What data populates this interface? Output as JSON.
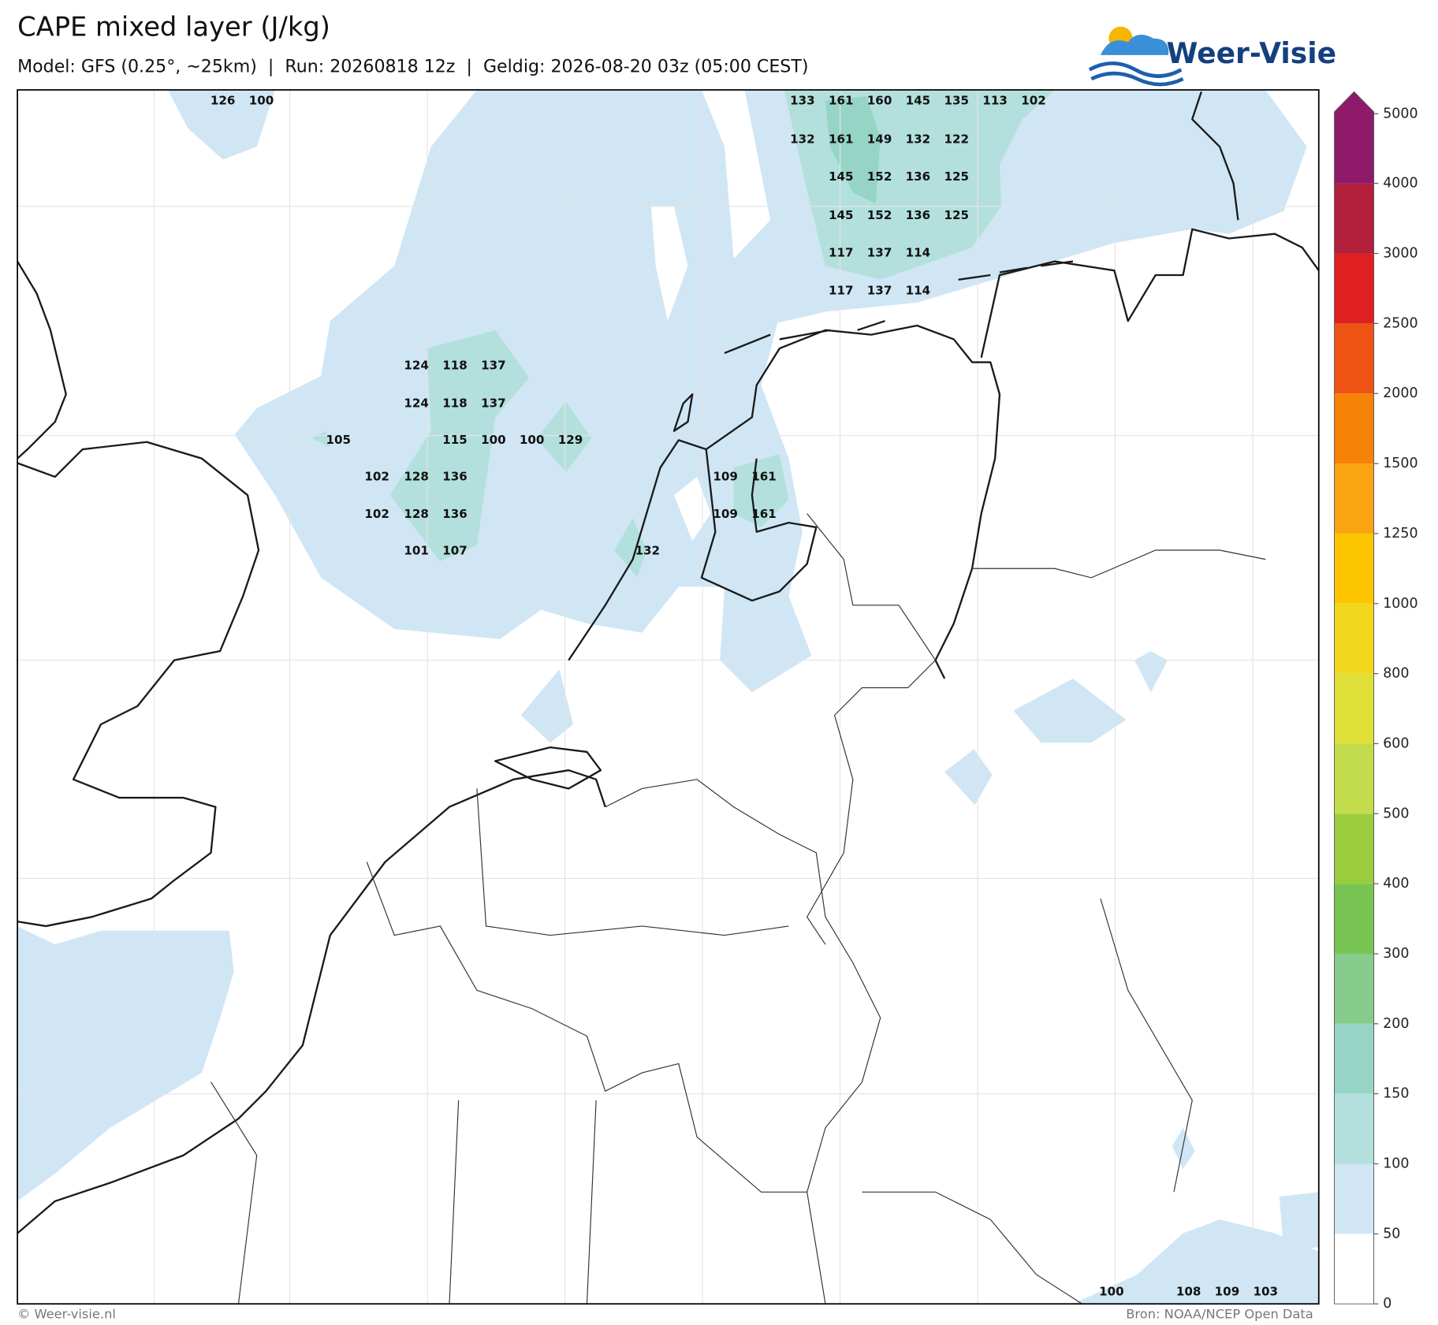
{
  "header": {
    "title": "CAPE mixed layer (J/kg)",
    "subtitle": "Model: GFS (0.25°, ~25km)  |  Run: 20260818 12z  |  Geldig: 2026-08-20 03z (05:00 CEST)",
    "logo": "Weer-Visie"
  },
  "map": {
    "cape_labels": [
      126,
      100,
      133,
      161,
      160,
      145,
      135,
      113,
      102,
      132,
      161,
      149,
      132,
      122,
      145,
      152,
      136,
      125,
      145,
      152,
      136,
      125,
      117,
      137,
      114,
      117,
      137,
      114,
      124,
      118,
      137,
      124,
      118,
      137,
      105,
      115,
      100,
      100,
      129,
      102,
      128,
      136,
      109,
      161,
      102,
      128,
      136,
      109,
      161,
      101,
      107,
      132,
      100,
      108,
      109,
      103
    ]
  },
  "colorbar": {
    "ticks": [
      0,
      50,
      100,
      150,
      200,
      300,
      400,
      500,
      600,
      800,
      1000,
      1250,
      1500,
      2000,
      2500,
      3000,
      4000,
      5000
    ],
    "colors": [
      "#ffffff",
      "#d0e6f5",
      "#b3e0dd",
      "#96d4c6",
      "#86cc8c",
      "#78c452",
      "#9acd3d",
      "#c3dc4b",
      "#e0e038",
      "#f2d61b",
      "#fcc500",
      "#fba411",
      "#f78208",
      "#ee5314",
      "#df2121",
      "#b3203c",
      "#8f1a6a"
    ]
  },
  "footer": {
    "left": "© Weer-visie.nl",
    "right": "Bron: NOAA/NCEP Open Data"
  }
}
